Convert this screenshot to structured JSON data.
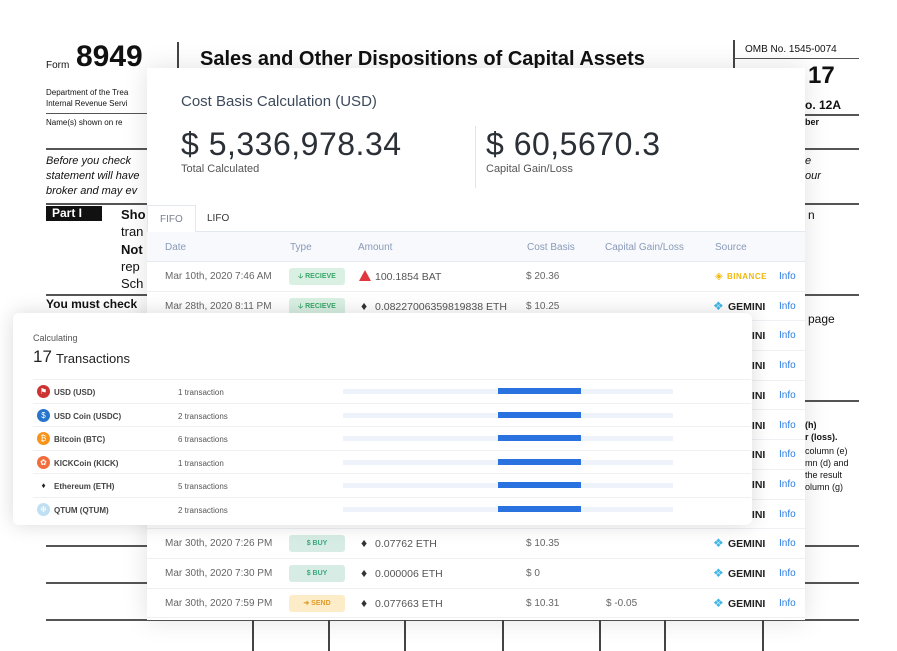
{
  "background_form": {
    "form_word": "Form",
    "form_number": "8949",
    "title": "Sales and Other Dispositions of Capital Assets",
    "omb": "OMB No. 1545-0074",
    "year_fragment": "17",
    "seq_fragment": "o. 12A",
    "dept": "Department of the Trea",
    "irs": "Internal Revenue Servi",
    "names": "Name(s) shown on re",
    "number_fragment": "ber",
    "before": "Before you check",
    "statement": "statement will have",
    "broker": "broker and may ev",
    "part": "Part I",
    "sho": "Sho",
    "tran": "tran",
    "not": "Not",
    "rep": "rep",
    "sch": "Sch",
    "must": "You must check",
    "e_frag": "e",
    "our_frag": "our",
    "n_frag": "n",
    "page_frag": "page",
    "h_frag": "(h)",
    "loss_frag": "r (loss).",
    "col_e": "column (e)",
    "col_d": "mn (d) and",
    "result": "the result",
    "col_g": "olumn (g)"
  },
  "card": {
    "title": "Cost Basis Calculation (USD)",
    "total_value": "$ 5,336,978.34",
    "total_label": "Total Calculated",
    "gain_value": "$ 60,5670.3",
    "gain_label": "Capital Gain/Loss"
  },
  "tabs": [
    "FIFO",
    "LIFO"
  ],
  "columns": [
    "Date",
    "Type",
    "Amount",
    "Cost Basis",
    "Capital Gain/Loss",
    "Source"
  ],
  "info_label": "Info",
  "rows": [
    {
      "date": "Mar 10th, 2020 7:46 AM",
      "type": "RECIEVE",
      "amount": "100.1854 BAT",
      "cost": "$ 20.36",
      "gain": "",
      "source": "BINANCE"
    },
    {
      "date": "Mar 28th, 2020 8:11 PM",
      "type": "RECIEVE",
      "amount": "0.08227006359819838 ETH",
      "cost": "$ 10.25",
      "gain": "",
      "source": "GEMINI"
    },
    {
      "source": "GEMINI"
    },
    {
      "source": "GEMINI"
    },
    {
      "source": "GEMINI"
    },
    {
      "source": "GEMINI"
    },
    {
      "source": "GEMINI"
    },
    {
      "source": "GEMINI"
    },
    {
      "source": "GEMINI"
    },
    {
      "date": "Mar 30th, 2020 7:26 PM",
      "type": "BUY",
      "amount": "0.07762 ETH",
      "cost": "$ 10.35",
      "gain": "",
      "source": "GEMINI"
    },
    {
      "date": "Mar 30th, 2020 7:30 PM",
      "type": "BUY",
      "amount": "0.000006 ETH",
      "cost": "$ 0",
      "gain": "",
      "source": "GEMINI"
    },
    {
      "date": "Mar 30th, 2020 7:59 PM",
      "type": "SEND",
      "amount": "0.077663 ETH",
      "cost": "$ 10.31",
      "gain": "$ -0.05",
      "source": "GEMINI"
    }
  ],
  "calc": {
    "status": "Calculating",
    "count": "17",
    "count_label": "Transactions",
    "items": [
      {
        "name": "USD (USD)",
        "count": "1 transaction",
        "progress": 0.25
      },
      {
        "name": "USD Coin (USDC)",
        "count": "2 transactions",
        "progress": 0.25
      },
      {
        "name": "Bitcoin (BTC)",
        "count": "6 transactions",
        "progress": 0.25
      },
      {
        "name": "KICKCoin (KICK)",
        "count": "1 transaction",
        "progress": 0.25
      },
      {
        "name": "Ethereum (ETH)",
        "count": "5 transactions",
        "progress": 0.25
      },
      {
        "name": "QTUM (QTUM)",
        "count": "2 transactions",
        "progress": 0.25
      }
    ]
  },
  "colors": {
    "accent": "#2a72e0",
    "info": "#2a7de1",
    "binance": "#f0b90b",
    "gemini": "#3fb6e8"
  }
}
